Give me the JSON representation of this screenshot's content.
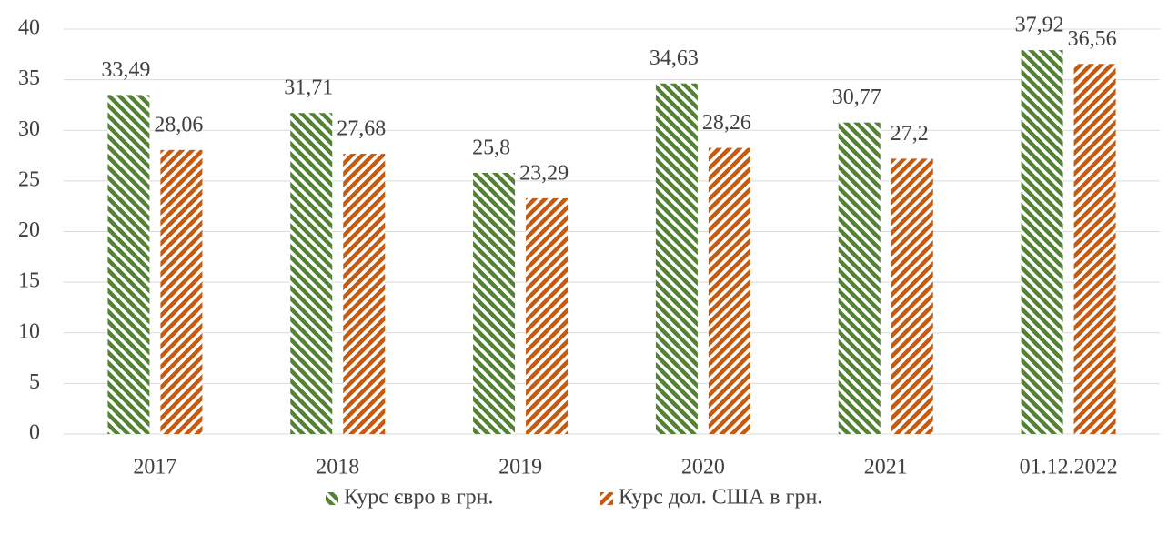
{
  "chart_data": {
    "type": "bar",
    "categories": [
      "2017",
      "2018",
      "2019",
      "2020",
      "2021",
      "01.12.2022"
    ],
    "series": [
      {
        "name": "Курс євро в грн.",
        "color": "#548235",
        "values": [
          33.49,
          31.71,
          25.8,
          34.63,
          30.77,
          37.92
        ],
        "value_labels": [
          "33,49",
          "31,71",
          "25,8",
          "34,63",
          "30,77",
          "37,92"
        ]
      },
      {
        "name": "Курс дол. США в грн.",
        "color": "#c55a11",
        "values": [
          28.06,
          27.68,
          23.29,
          28.26,
          27.2,
          36.56
        ],
        "value_labels": [
          "28,06",
          "27,68",
          "23,29",
          "28,26",
          "27,2",
          "36,56"
        ]
      }
    ],
    "ylim": [
      0,
      40
    ],
    "yticks": [
      0,
      5,
      10,
      15,
      20,
      25,
      30,
      35,
      40
    ],
    "grid": true,
    "legend": "bottom"
  }
}
